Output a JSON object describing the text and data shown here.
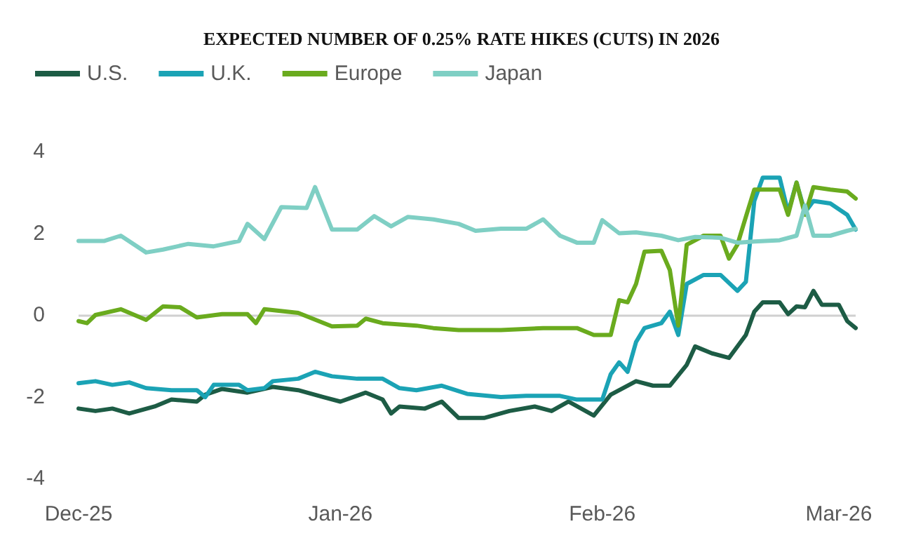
{
  "chart_data": {
    "type": "line",
    "title": "EXPECTED NUMBER OF 0.25% RATE HIKES (CUTS) IN 2026",
    "legend": "top left",
    "grid": false,
    "marker": "none",
    "line_style": "solid",
    "xlim": [
      "2025-12-01",
      "2026-03-03"
    ],
    "xticks": [
      {
        "value": "2025-12-01",
        "label": "Dec-25"
      },
      {
        "value": "2026-01-01",
        "label": "Jan-26"
      },
      {
        "value": "2026-02-01",
        "label": "Feb-26"
      },
      {
        "value": "2026-03-01",
        "label": "Mar-26"
      }
    ],
    "ylim": [
      -4,
      4
    ],
    "yticks": [
      -4,
      -2,
      0,
      2,
      4
    ],
    "ref_lines": [
      {
        "axis": "y",
        "value": 0,
        "color": "#d0d0d0"
      }
    ],
    "series": [
      {
        "name": "U.S.",
        "color": "#1d5c45",
        "x": [
          "2025-12-01",
          "2025-12-03",
          "2025-12-05",
          "2025-12-07",
          "2025-12-10",
          "2025-12-12",
          "2025-12-15",
          "2025-12-16",
          "2025-12-18",
          "2025-12-21",
          "2025-12-24",
          "2025-12-27",
          "2025-12-30",
          "2026-01-01",
          "2026-01-04",
          "2026-01-06",
          "2026-01-07",
          "2026-01-08",
          "2026-01-11",
          "2026-01-13",
          "2026-01-15",
          "2026-01-18",
          "2026-01-21",
          "2026-01-24",
          "2026-01-26",
          "2026-01-28",
          "2026-01-31",
          "2026-02-02",
          "2026-02-05",
          "2026-02-07",
          "2026-02-09",
          "2026-02-11",
          "2026-02-12",
          "2026-02-14",
          "2026-02-16",
          "2026-02-18",
          "2026-02-19",
          "2026-02-20",
          "2026-02-22",
          "2026-02-23",
          "2026-02-24",
          "2026-02-25",
          "2026-02-26",
          "2026-02-27",
          "2026-03-01",
          "2026-03-02",
          "2026-03-03"
        ],
        "values": [
          -2.29,
          -2.35,
          -2.29,
          -2.41,
          -2.24,
          -2.07,
          -2.12,
          -1.95,
          -1.81,
          -1.9,
          -1.76,
          -1.84,
          -2.01,
          -2.12,
          -1.9,
          -2.07,
          -2.41,
          -2.24,
          -2.29,
          -2.12,
          -2.52,
          -2.52,
          -2.35,
          -2.24,
          -2.35,
          -2.12,
          -2.46,
          -1.95,
          -1.62,
          -1.73,
          -1.73,
          -1.22,
          -0.77,
          -0.94,
          -1.05,
          -0.49,
          0.08,
          0.31,
          0.31,
          0.02,
          0.21,
          0.19,
          0.59,
          0.25,
          0.25,
          -0.15,
          -0.32
        ]
      },
      {
        "name": "U.K.",
        "color": "#1ba3b5",
        "x": [
          "2025-12-01",
          "2025-12-03",
          "2025-12-05",
          "2025-12-07",
          "2025-12-09",
          "2025-12-12",
          "2025-12-15",
          "2025-12-16",
          "2025-12-17",
          "2025-12-20",
          "2025-12-21",
          "2025-12-23",
          "2025-12-24",
          "2025-12-27",
          "2025-12-29",
          "2025-12-31",
          "2026-01-03",
          "2026-01-06",
          "2026-01-08",
          "2026-01-10",
          "2026-01-13",
          "2026-01-16",
          "2026-01-20",
          "2026-01-23",
          "2026-01-27",
          "2026-01-29",
          "2026-02-01",
          "2026-02-02",
          "2026-02-03",
          "2026-02-04",
          "2026-02-05",
          "2026-02-06",
          "2026-02-08",
          "2026-02-09",
          "2026-02-10",
          "2026-02-11",
          "2026-02-13",
          "2026-02-15",
          "2026-02-17",
          "2026-02-18",
          "2026-02-19",
          "2026-02-20",
          "2026-02-22",
          "2026-02-23",
          "2026-02-24",
          "2026-02-25",
          "2026-02-26",
          "2026-02-28",
          "2026-03-02",
          "2026-03-03"
        ],
        "values": [
          -1.67,
          -1.62,
          -1.71,
          -1.65,
          -1.79,
          -1.84,
          -1.84,
          -2.01,
          -1.71,
          -1.71,
          -1.84,
          -1.79,
          -1.62,
          -1.56,
          -1.39,
          -1.5,
          -1.56,
          -1.56,
          -1.79,
          -1.84,
          -1.73,
          -1.93,
          -2.01,
          -1.98,
          -1.98,
          -2.07,
          -2.07,
          -1.45,
          -1.16,
          -1.39,
          -0.66,
          -0.32,
          -0.2,
          0.08,
          -0.49,
          0.76,
          0.98,
          0.98,
          0.59,
          0.81,
          2.79,
          3.36,
          3.36,
          2.51,
          3.24,
          2.51,
          2.79,
          2.73,
          2.45,
          2.09
        ]
      },
      {
        "name": "Europe",
        "color": "#6aab1e",
        "x": [
          "2025-12-01",
          "2025-12-02",
          "2025-12-03",
          "2025-12-06",
          "2025-12-09",
          "2025-12-11",
          "2025-12-13",
          "2025-12-15",
          "2025-12-18",
          "2025-12-21",
          "2025-12-22",
          "2025-12-23",
          "2025-12-27",
          "2025-12-31",
          "2026-01-03",
          "2026-01-04",
          "2026-01-06",
          "2026-01-10",
          "2026-01-12",
          "2026-01-15",
          "2026-01-20",
          "2026-01-25",
          "2026-01-29",
          "2026-01-31",
          "2026-02-02",
          "2026-02-03",
          "2026-02-04",
          "2026-02-05",
          "2026-02-06",
          "2026-02-08",
          "2026-02-09",
          "2026-02-10",
          "2026-02-11",
          "2026-02-13",
          "2026-02-15",
          "2026-02-16",
          "2026-02-17",
          "2026-02-18",
          "2026-02-19",
          "2026-02-22",
          "2026-02-23",
          "2026-02-24",
          "2026-02-25",
          "2026-02-26",
          "2026-02-28",
          "2026-03-02",
          "2026-03-03"
        ],
        "values": [
          -0.15,
          -0.2,
          0,
          0.14,
          -0.12,
          0.21,
          0.19,
          -0.06,
          0.02,
          0.02,
          -0.2,
          0.14,
          0.05,
          -0.28,
          -0.26,
          -0.09,
          -0.2,
          -0.26,
          -0.32,
          -0.37,
          -0.37,
          -0.32,
          -0.32,
          -0.49,
          -0.49,
          0.36,
          0.31,
          0.76,
          1.55,
          1.57,
          1.1,
          -0.26,
          1.72,
          1.94,
          1.94,
          1.38,
          1.72,
          2.4,
          3.07,
          3.07,
          2.45,
          3.24,
          2.45,
          3.13,
          3.07,
          3.02,
          2.85
        ]
      },
      {
        "name": "Japan",
        "color": "#7fcfc4",
        "x": [
          "2025-12-01",
          "2025-12-04",
          "2025-12-06",
          "2025-12-09",
          "2025-12-11",
          "2025-12-14",
          "2025-12-17",
          "2025-12-20",
          "2025-12-21",
          "2025-12-23",
          "2025-12-25",
          "2025-12-28",
          "2025-12-29",
          "2025-12-31",
          "2026-01-03",
          "2026-01-05",
          "2026-01-07",
          "2026-01-09",
          "2026-01-12",
          "2026-01-15",
          "2026-01-17",
          "2026-01-20",
          "2026-01-23",
          "2026-01-25",
          "2026-01-27",
          "2026-01-29",
          "2026-01-31",
          "2026-02-01",
          "2026-02-03",
          "2026-02-05",
          "2026-02-08",
          "2026-02-10",
          "2026-02-12",
          "2026-02-15",
          "2026-02-17",
          "2026-02-19",
          "2026-02-22",
          "2026-02-24",
          "2026-02-25",
          "2026-02-26",
          "2026-02-28",
          "2026-03-02",
          "2026-03-03"
        ],
        "values": [
          1.81,
          1.81,
          1.94,
          1.53,
          1.6,
          1.74,
          1.68,
          1.81,
          2.23,
          1.86,
          2.64,
          2.62,
          3.13,
          2.09,
          2.09,
          2.42,
          2.17,
          2.4,
          2.34,
          2.23,
          2.06,
          2.11,
          2.11,
          2.34,
          1.94,
          1.77,
          1.77,
          2.32,
          2.0,
          2.02,
          1.94,
          1.83,
          1.91,
          1.89,
          1.77,
          1.8,
          1.83,
          1.94,
          2.68,
          1.94,
          1.94,
          2.06,
          2.11
        ]
      }
    ]
  }
}
